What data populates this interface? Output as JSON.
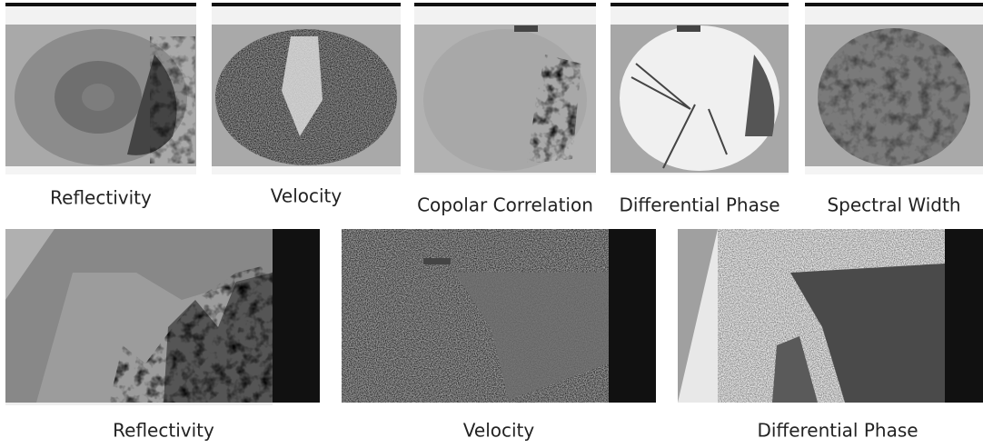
{
  "top_row": {
    "captions": [
      "Reflectivity",
      "Velocity",
      "Copolar Correlation",
      "Differential Phase",
      "Spectral Width"
    ]
  },
  "bottom_row": {
    "captions": [
      "Reflectivity",
      "Velocity",
      "Differential Phase"
    ]
  }
}
